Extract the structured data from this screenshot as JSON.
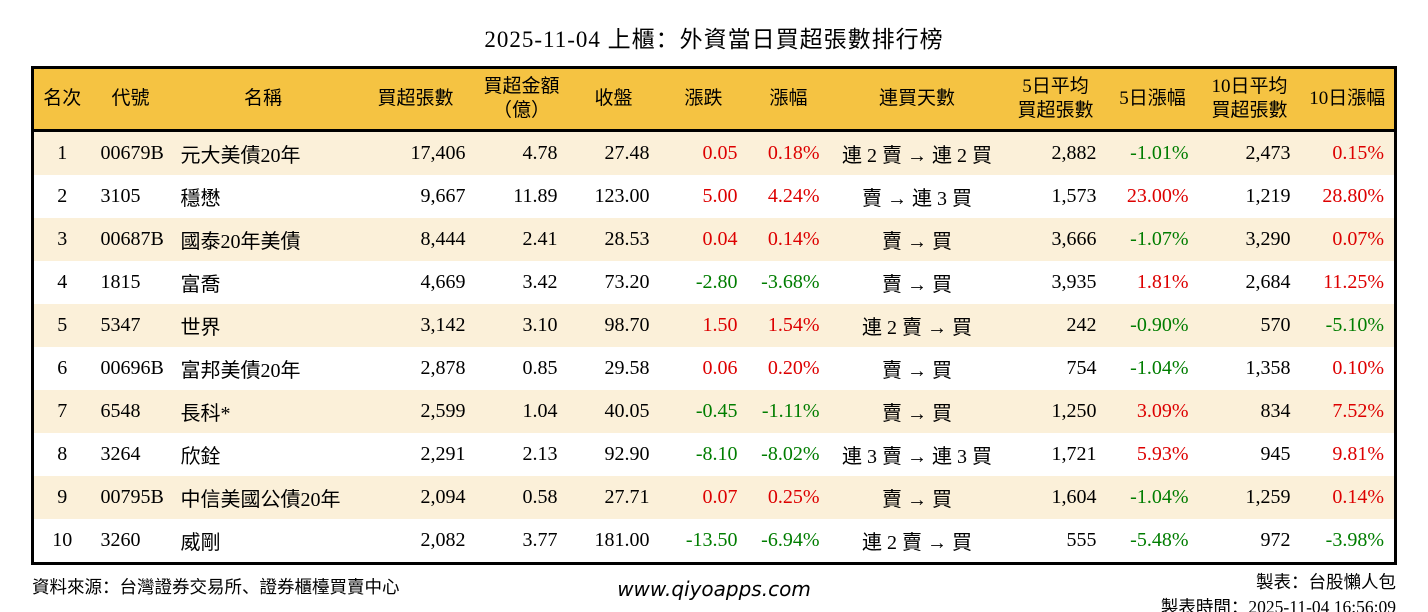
{
  "title": "2025-11-04 上櫃：外資當日買超張數排行榜",
  "colors": {
    "header_bg": "#F5C342",
    "row_stripe_bg": "#FBF0D9",
    "up_red": "#DD0000",
    "down_green": "#007D00",
    "border": "#000000"
  },
  "chart_data": {
    "type": "table",
    "title": "2025-11-04 上櫃：外資當日買超張數排行榜",
    "legend_note": "red = rise, green = decline (Taiwan market convention)",
    "columns": [
      {
        "key": "rank",
        "label": "名次",
        "align": "center",
        "signed": false
      },
      {
        "key": "code",
        "label": "代號",
        "align": "left",
        "signed": false
      },
      {
        "key": "name",
        "label": "名稱",
        "align": "left",
        "signed": false
      },
      {
        "key": "net_buy",
        "label": "買超張數",
        "align": "right",
        "signed": false
      },
      {
        "key": "amount",
        "label": "買超金額\n（億）",
        "align": "right",
        "signed": false
      },
      {
        "key": "close",
        "label": "收盤",
        "align": "right",
        "signed": false
      },
      {
        "key": "change",
        "label": "漲跌",
        "align": "right",
        "signed": true
      },
      {
        "key": "change_pct",
        "label": "漲幅",
        "align": "right",
        "signed": true
      },
      {
        "key": "streak",
        "label": "連買天數",
        "align": "center",
        "signed": false
      },
      {
        "key": "avg5",
        "label": "5日平均\n買超張數",
        "align": "right",
        "signed": false
      },
      {
        "key": "pct5",
        "label": "5日漲幅",
        "align": "right",
        "signed": true
      },
      {
        "key": "avg10",
        "label": "10日平均\n買超張數",
        "align": "right",
        "signed": false
      },
      {
        "key": "pct10",
        "label": "10日漲幅",
        "align": "right",
        "signed": true
      }
    ],
    "rows": [
      {
        "rank": "1",
        "code": "00679B",
        "name": "元大美債20年",
        "net_buy": "17,406",
        "amount": "4.78",
        "close": "27.48",
        "change": "0.05",
        "change_pct": "0.18%",
        "streak": "連 2 賣 → 連 2 買",
        "avg5": "2,882",
        "pct5": "-1.01%",
        "avg10": "2,473",
        "pct10": "0.15%"
      },
      {
        "rank": "2",
        "code": "3105",
        "name": "穩懋",
        "net_buy": "9,667",
        "amount": "11.89",
        "close": "123.00",
        "change": "5.00",
        "change_pct": "4.24%",
        "streak": "賣 → 連 3 買",
        "avg5": "1,573",
        "pct5": "23.00%",
        "avg10": "1,219",
        "pct10": "28.80%"
      },
      {
        "rank": "3",
        "code": "00687B",
        "name": "國泰20年美債",
        "net_buy": "8,444",
        "amount": "2.41",
        "close": "28.53",
        "change": "0.04",
        "change_pct": "0.14%",
        "streak": "賣 → 買",
        "avg5": "3,666",
        "pct5": "-1.07%",
        "avg10": "3,290",
        "pct10": "0.07%"
      },
      {
        "rank": "4",
        "code": "1815",
        "name": "富喬",
        "net_buy": "4,669",
        "amount": "3.42",
        "close": "73.20",
        "change": "-2.80",
        "change_pct": "-3.68%",
        "streak": "賣 → 買",
        "avg5": "3,935",
        "pct5": "1.81%",
        "avg10": "2,684",
        "pct10": "11.25%"
      },
      {
        "rank": "5",
        "code": "5347",
        "name": "世界",
        "net_buy": "3,142",
        "amount": "3.10",
        "close": "98.70",
        "change": "1.50",
        "change_pct": "1.54%",
        "streak": "連 2 賣 → 買",
        "avg5": "242",
        "pct5": "-0.90%",
        "avg10": "570",
        "pct10": "-5.10%"
      },
      {
        "rank": "6",
        "code": "00696B",
        "name": "富邦美債20年",
        "net_buy": "2,878",
        "amount": "0.85",
        "close": "29.58",
        "change": "0.06",
        "change_pct": "0.20%",
        "streak": "賣 → 買",
        "avg5": "754",
        "pct5": "-1.04%",
        "avg10": "1,358",
        "pct10": "0.10%"
      },
      {
        "rank": "7",
        "code": "6548",
        "name": "長科*",
        "net_buy": "2,599",
        "amount": "1.04",
        "close": "40.05",
        "change": "-0.45",
        "change_pct": "-1.11%",
        "streak": "賣 → 買",
        "avg5": "1,250",
        "pct5": "3.09%",
        "avg10": "834",
        "pct10": "7.52%"
      },
      {
        "rank": "8",
        "code": "3264",
        "name": "欣銓",
        "net_buy": "2,291",
        "amount": "2.13",
        "close": "92.90",
        "change": "-8.10",
        "change_pct": "-8.02%",
        "streak": "連 3 賣 → 連 3 買",
        "avg5": "1,721",
        "pct5": "5.93%",
        "avg10": "945",
        "pct10": "9.81%"
      },
      {
        "rank": "9",
        "code": "00795B",
        "name": "中信美國公債20年",
        "net_buy": "2,094",
        "amount": "0.58",
        "close": "27.71",
        "change": "0.07",
        "change_pct": "0.25%",
        "streak": "賣 → 買",
        "avg5": "1,604",
        "pct5": "-1.04%",
        "avg10": "1,259",
        "pct10": "0.14%"
      },
      {
        "rank": "10",
        "code": "3260",
        "name": "威剛",
        "net_buy": "2,082",
        "amount": "3.77",
        "close": "181.00",
        "change": "-13.50",
        "change_pct": "-6.94%",
        "streak": "連 2 賣 → 買",
        "avg5": "555",
        "pct5": "-5.48%",
        "avg10": "972",
        "pct10": "-3.98%"
      }
    ]
  },
  "footer": {
    "source": "資料來源：台灣證券交易所、證券櫃檯買賣中心",
    "website": "www.qiyoapps.com",
    "maker": "製表：台股懶人包",
    "made_time": "製表時間：2025-11-04 16:56:09"
  }
}
